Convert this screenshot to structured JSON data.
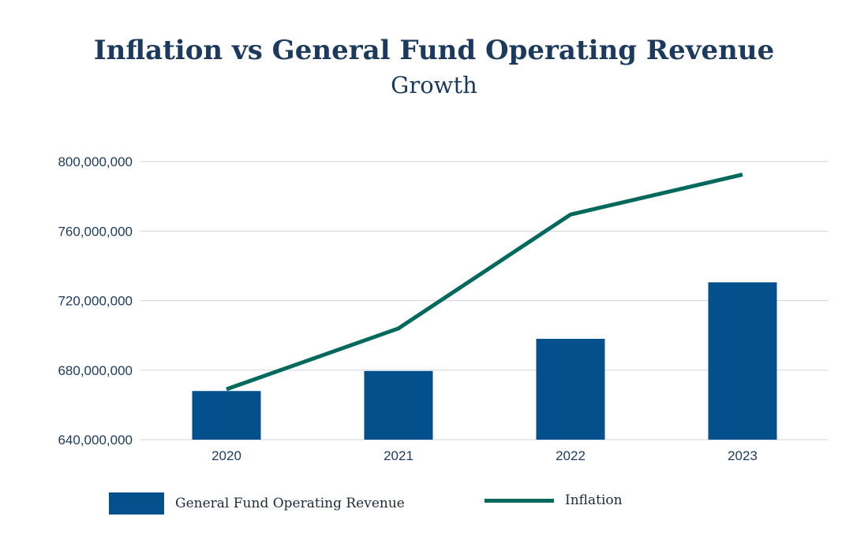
{
  "title": "Inflation vs General Fund Operating Revenue",
  "subtitle": "Growth",
  "colors": {
    "bar": "#03508c",
    "line": "#03695d",
    "grid": "#d0d6dd",
    "text": "#1c3a5e"
  },
  "legend": {
    "bar_label": "General Fund Operating Revenue",
    "line_label": "Inflation"
  },
  "chart_data": {
    "type": "bar",
    "categories": [
      "2020",
      "2021",
      "2022",
      "2023"
    ],
    "series": [
      {
        "name": "General Fund Operating Revenue",
        "type": "bar",
        "values": [
          668000000,
          679500000,
          698000000,
          730500000
        ]
      },
      {
        "name": "Inflation",
        "type": "line",
        "values": [
          669000000,
          704000000,
          769500000,
          792500000
        ]
      }
    ],
    "ylim": [
      640000000,
      800000000
    ],
    "yticks": [
      640000000,
      680000000,
      720000000,
      760000000,
      800000000
    ],
    "ytick_labels": [
      "640,000,000",
      "680,000,000",
      "720,000,000",
      "760,000,000",
      "800,000,000"
    ],
    "grid": true,
    "legend_position": "bottom"
  }
}
